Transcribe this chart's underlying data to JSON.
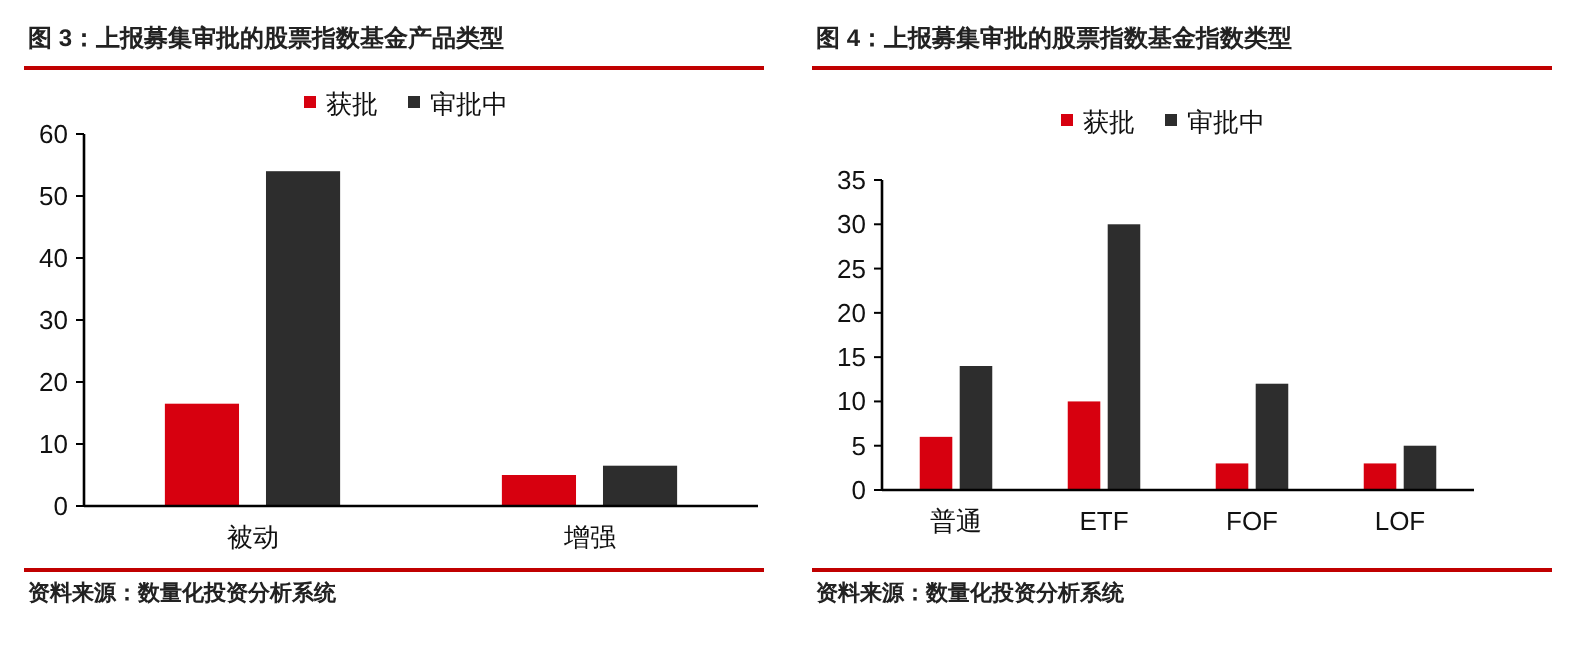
{
  "chart_data": [
    {
      "type": "bar",
      "title": "图 3：上报募集审批的股票指数基金产品类型",
      "categories": [
        "被动",
        "增强"
      ],
      "series": [
        {
          "name": "获批",
          "color": "#d7000f",
          "values": [
            16.5,
            5
          ]
        },
        {
          "name": "审批中",
          "color": "#2d2d2d",
          "values": [
            54,
            6.5
          ]
        }
      ],
      "ylim": [
        0,
        60
      ],
      "yticks": [
        0,
        10,
        20,
        30,
        40,
        50,
        60
      ],
      "grid": false,
      "legend": "top",
      "annotations": [
        "资料来源：数量化投资分析系统"
      ]
    },
    {
      "type": "bar",
      "title": "图 4：上报募集审批的股票指数基金指数类型",
      "categories": [
        "普通",
        "ETF",
        "FOF",
        "LOF"
      ],
      "series": [
        {
          "name": "获批",
          "color": "#d7000f",
          "values": [
            6,
            10,
            3,
            3
          ]
        },
        {
          "name": "审批中",
          "color": "#2d2d2d",
          "values": [
            14,
            30,
            12,
            5
          ]
        }
      ],
      "ylim": [
        0,
        35
      ],
      "yticks": [
        0,
        5,
        10,
        15,
        20,
        25,
        30,
        35
      ],
      "grid": false,
      "legend": "top",
      "annotations": [
        "资料来源：数量化投资分析系统"
      ]
    }
  ]
}
